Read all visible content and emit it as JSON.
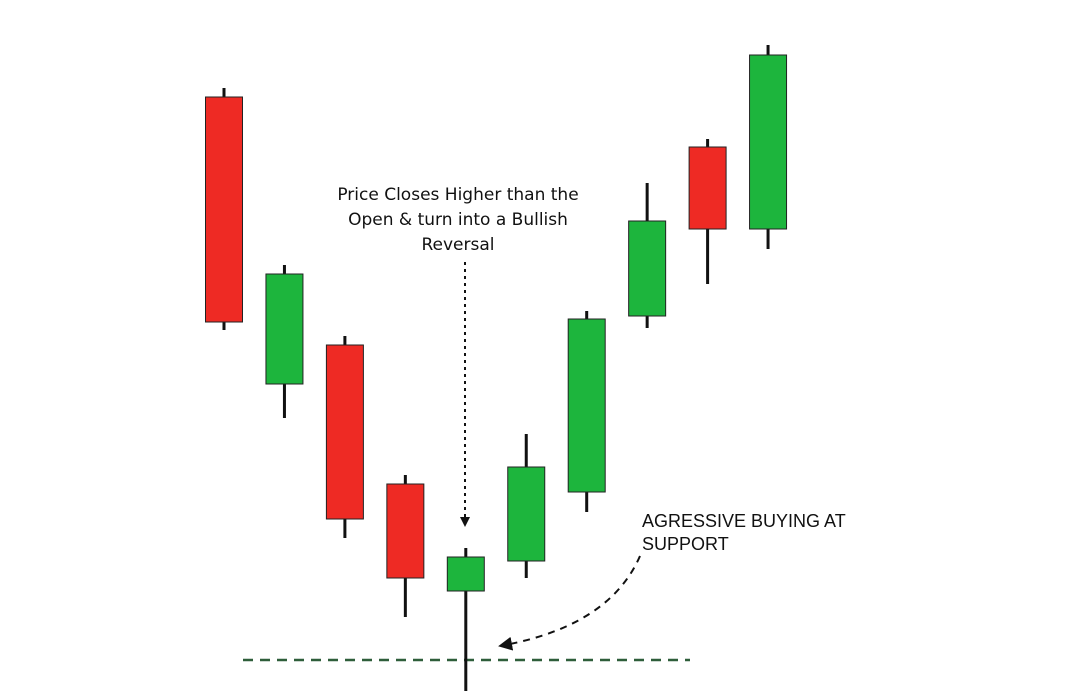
{
  "chart_data": {
    "type": "candlestick",
    "open": [
      60.3,
      31.6,
      35.5,
      21.6,
      10.9,
      13.9,
      20.8,
      38.4,
      55.3,
      47.1
    ],
    "high": [
      61.2,
      43.5,
      36.4,
      22.5,
      15.2,
      26.6,
      38.9,
      51.7,
      56.1,
      65.5
    ],
    "low": [
      37.0,
      28.2,
      16.2,
      8.3,
      0.9,
      12.2,
      18.8,
      37.2,
      41.6,
      45.1
    ],
    "close": [
      37.8,
      42.6,
      18.1,
      12.2,
      14.3,
      23.3,
      38.1,
      47.9,
      47.1,
      64.5
    ],
    "up_color": "#1db53d",
    "down_color": "#ee2a24",
    "ylim": [
      0,
      70
    ],
    "support_level": 4.0,
    "support_color": "#2e5e3a",
    "annotations": [
      {
        "lines": [
          "Price Closes Higher than the",
          "Open & turn into a Bullish",
          "Reversal"
        ]
      },
      {
        "lines": [
          "AGRESSIVE BUYING AT",
          "SUPPORT"
        ]
      }
    ]
  }
}
